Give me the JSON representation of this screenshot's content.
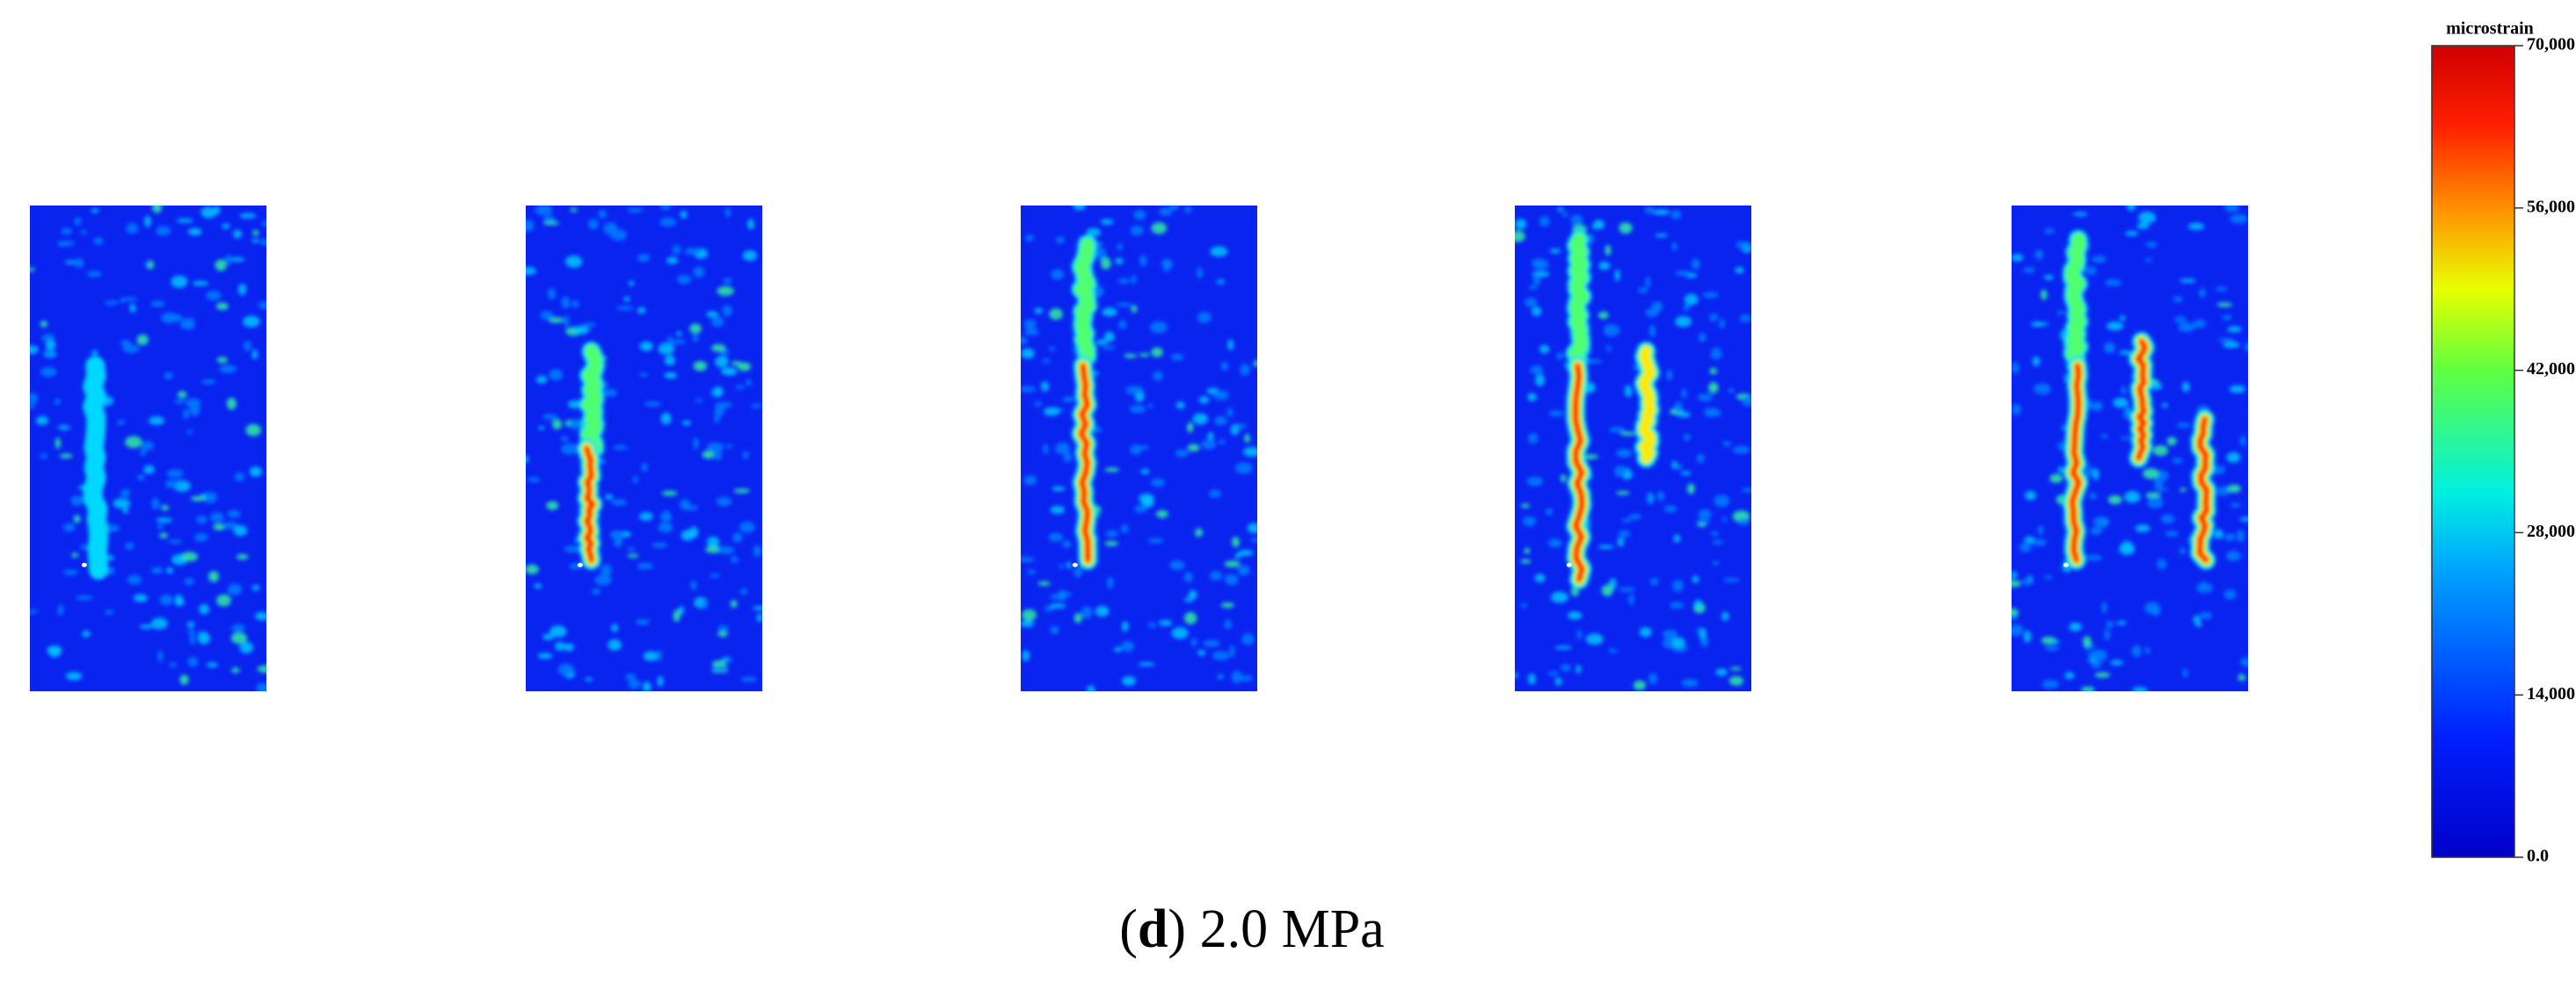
{
  "colorbar": {
    "title": "microstrain",
    "range": [
      0,
      70000
    ],
    "ticks": [
      {
        "value": 0,
        "label": "0.0"
      },
      {
        "value": 14000,
        "label": "14,000.0"
      },
      {
        "value": 28000,
        "label": "28,000.0"
      },
      {
        "value": 42000,
        "label": "42,000.0"
      },
      {
        "value": 56000,
        "label": "56,000.0"
      },
      {
        "value": 70000,
        "label": "70,000.0"
      }
    ]
  },
  "caption": {
    "open": "(",
    "letter": "d",
    "text": ") 2.0 MPa"
  }
}
